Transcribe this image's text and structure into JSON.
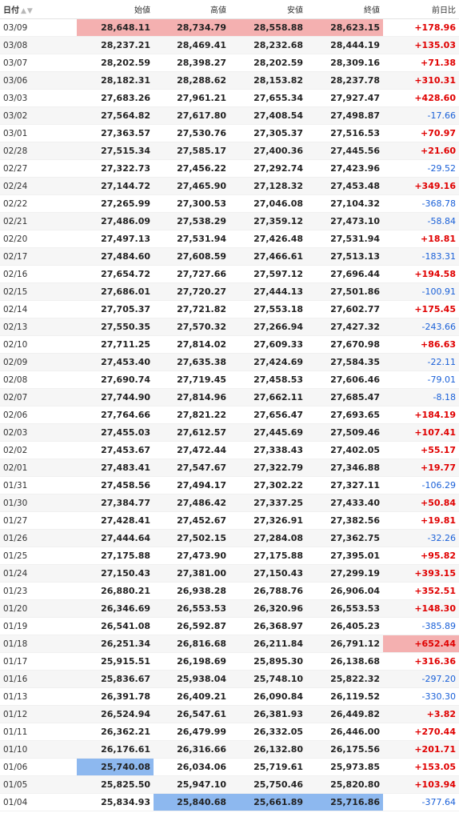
{
  "header": {
    "date": "日付",
    "open": "始値",
    "high": "高値",
    "low": "安値",
    "close": "終値",
    "change": "前日比",
    "sort_icon": "sort-up-down-icon"
  },
  "colors": {
    "high_highlight": "#f4b0b0",
    "low_highlight": "#8db8ef",
    "positive": "#e00000",
    "negative": "#1a60d8"
  },
  "rows": [
    {
      "date": "03/09",
      "open": "28,648.11",
      "high": "28,734.79",
      "low": "28,558.88",
      "close": "28,623.15",
      "change": "+178.96",
      "hi": [
        "open",
        "high",
        "low",
        "close"
      ],
      "lo": []
    },
    {
      "date": "03/08",
      "open": "28,237.21",
      "high": "28,469.41",
      "low": "28,232.68",
      "close": "28,444.19",
      "change": "+135.03",
      "hi": [],
      "lo": []
    },
    {
      "date": "03/07",
      "open": "28,202.59",
      "high": "28,398.27",
      "low": "28,202.59",
      "close": "28,309.16",
      "change": "+71.38",
      "hi": [],
      "lo": []
    },
    {
      "date": "03/06",
      "open": "28,182.31",
      "high": "28,288.62",
      "low": "28,153.82",
      "close": "28,237.78",
      "change": "+310.31",
      "hi": [],
      "lo": []
    },
    {
      "date": "03/03",
      "open": "27,683.26",
      "high": "27,961.21",
      "low": "27,655.34",
      "close": "27,927.47",
      "change": "+428.60",
      "hi": [],
      "lo": []
    },
    {
      "date": "03/02",
      "open": "27,564.82",
      "high": "27,617.80",
      "low": "27,408.54",
      "close": "27,498.87",
      "change": "-17.66",
      "hi": [],
      "lo": []
    },
    {
      "date": "03/01",
      "open": "27,363.57",
      "high": "27,530.76",
      "low": "27,305.37",
      "close": "27,516.53",
      "change": "+70.97",
      "hi": [],
      "lo": []
    },
    {
      "date": "02/28",
      "open": "27,515.34",
      "high": "27,585.17",
      "low": "27,400.36",
      "close": "27,445.56",
      "change": "+21.60",
      "hi": [],
      "lo": []
    },
    {
      "date": "02/27",
      "open": "27,322.73",
      "high": "27,456.22",
      "low": "27,292.74",
      "close": "27,423.96",
      "change": "-29.52",
      "hi": [],
      "lo": []
    },
    {
      "date": "02/24",
      "open": "27,144.72",
      "high": "27,465.90",
      "low": "27,128.32",
      "close": "27,453.48",
      "change": "+349.16",
      "hi": [],
      "lo": []
    },
    {
      "date": "02/22",
      "open": "27,265.99",
      "high": "27,300.53",
      "low": "27,046.08",
      "close": "27,104.32",
      "change": "-368.78",
      "hi": [],
      "lo": []
    },
    {
      "date": "02/21",
      "open": "27,486.09",
      "high": "27,538.29",
      "low": "27,359.12",
      "close": "27,473.10",
      "change": "-58.84",
      "hi": [],
      "lo": []
    },
    {
      "date": "02/20",
      "open": "27,497.13",
      "high": "27,531.94",
      "low": "27,426.48",
      "close": "27,531.94",
      "change": "+18.81",
      "hi": [],
      "lo": []
    },
    {
      "date": "02/17",
      "open": "27,484.60",
      "high": "27,608.59",
      "low": "27,466.61",
      "close": "27,513.13",
      "change": "-183.31",
      "hi": [],
      "lo": []
    },
    {
      "date": "02/16",
      "open": "27,654.72",
      "high": "27,727.66",
      "low": "27,597.12",
      "close": "27,696.44",
      "change": "+194.58",
      "hi": [],
      "lo": []
    },
    {
      "date": "02/15",
      "open": "27,686.01",
      "high": "27,720.27",
      "low": "27,444.13",
      "close": "27,501.86",
      "change": "-100.91",
      "hi": [],
      "lo": []
    },
    {
      "date": "02/14",
      "open": "27,705.37",
      "high": "27,721.82",
      "low": "27,553.18",
      "close": "27,602.77",
      "change": "+175.45",
      "hi": [],
      "lo": []
    },
    {
      "date": "02/13",
      "open": "27,550.35",
      "high": "27,570.32",
      "low": "27,266.94",
      "close": "27,427.32",
      "change": "-243.66",
      "hi": [],
      "lo": []
    },
    {
      "date": "02/10",
      "open": "27,711.25",
      "high": "27,814.02",
      "low": "27,609.33",
      "close": "27,670.98",
      "change": "+86.63",
      "hi": [],
      "lo": []
    },
    {
      "date": "02/09",
      "open": "27,453.40",
      "high": "27,635.38",
      "low": "27,424.69",
      "close": "27,584.35",
      "change": "-22.11",
      "hi": [],
      "lo": []
    },
    {
      "date": "02/08",
      "open": "27,690.74",
      "high": "27,719.45",
      "low": "27,458.53",
      "close": "27,606.46",
      "change": "-79.01",
      "hi": [],
      "lo": []
    },
    {
      "date": "02/07",
      "open": "27,744.90",
      "high": "27,814.96",
      "low": "27,662.11",
      "close": "27,685.47",
      "change": "-8.18",
      "hi": [],
      "lo": []
    },
    {
      "date": "02/06",
      "open": "27,764.66",
      "high": "27,821.22",
      "low": "27,656.47",
      "close": "27,693.65",
      "change": "+184.19",
      "hi": [],
      "lo": []
    },
    {
      "date": "02/03",
      "open": "27,455.03",
      "high": "27,612.57",
      "low": "27,445.69",
      "close": "27,509.46",
      "change": "+107.41",
      "hi": [],
      "lo": []
    },
    {
      "date": "02/02",
      "open": "27,453.67",
      "high": "27,472.44",
      "low": "27,338.43",
      "close": "27,402.05",
      "change": "+55.17",
      "hi": [],
      "lo": []
    },
    {
      "date": "02/01",
      "open": "27,483.41",
      "high": "27,547.67",
      "low": "27,322.79",
      "close": "27,346.88",
      "change": "+19.77",
      "hi": [],
      "lo": []
    },
    {
      "date": "01/31",
      "open": "27,458.56",
      "high": "27,494.17",
      "low": "27,302.22",
      "close": "27,327.11",
      "change": "-106.29",
      "hi": [],
      "lo": []
    },
    {
      "date": "01/30",
      "open": "27,384.77",
      "high": "27,486.42",
      "low": "27,337.25",
      "close": "27,433.40",
      "change": "+50.84",
      "hi": [],
      "lo": []
    },
    {
      "date": "01/27",
      "open": "27,428.41",
      "high": "27,452.67",
      "low": "27,326.91",
      "close": "27,382.56",
      "change": "+19.81",
      "hi": [],
      "lo": []
    },
    {
      "date": "01/26",
      "open": "27,444.64",
      "high": "27,502.15",
      "low": "27,284.08",
      "close": "27,362.75",
      "change": "-32.26",
      "hi": [],
      "lo": []
    },
    {
      "date": "01/25",
      "open": "27,175.88",
      "high": "27,473.90",
      "low": "27,175.88",
      "close": "27,395.01",
      "change": "+95.82",
      "hi": [],
      "lo": []
    },
    {
      "date": "01/24",
      "open": "27,150.43",
      "high": "27,381.00",
      "low": "27,150.43",
      "close": "27,299.19",
      "change": "+393.15",
      "hi": [],
      "lo": []
    },
    {
      "date": "01/23",
      "open": "26,880.21",
      "high": "26,938.28",
      "low": "26,788.76",
      "close": "26,906.04",
      "change": "+352.51",
      "hi": [],
      "lo": []
    },
    {
      "date": "01/20",
      "open": "26,346.69",
      "high": "26,553.53",
      "low": "26,320.96",
      "close": "26,553.53",
      "change": "+148.30",
      "hi": [],
      "lo": []
    },
    {
      "date": "01/19",
      "open": "26,541.08",
      "high": "26,592.87",
      "low": "26,368.97",
      "close": "26,405.23",
      "change": "-385.89",
      "hi": [],
      "lo": []
    },
    {
      "date": "01/18",
      "open": "26,251.34",
      "high": "26,816.68",
      "low": "26,211.84",
      "close": "26,791.12",
      "change": "+652.44",
      "hi": [
        "change"
      ],
      "lo": []
    },
    {
      "date": "01/17",
      "open": "25,915.51",
      "high": "26,198.69",
      "low": "25,895.30",
      "close": "26,138.68",
      "change": "+316.36",
      "hi": [],
      "lo": []
    },
    {
      "date": "01/16",
      "open": "25,836.67",
      "high": "25,938.04",
      "low": "25,748.10",
      "close": "25,822.32",
      "change": "-297.20",
      "hi": [],
      "lo": []
    },
    {
      "date": "01/13",
      "open": "26,391.78",
      "high": "26,409.21",
      "low": "26,090.84",
      "close": "26,119.52",
      "change": "-330.30",
      "hi": [],
      "lo": []
    },
    {
      "date": "01/12",
      "open": "26,524.94",
      "high": "26,547.61",
      "low": "26,381.93",
      "close": "26,449.82",
      "change": "+3.82",
      "hi": [],
      "lo": []
    },
    {
      "date": "01/11",
      "open": "26,362.21",
      "high": "26,479.99",
      "low": "26,332.05",
      "close": "26,446.00",
      "change": "+270.44",
      "hi": [],
      "lo": []
    },
    {
      "date": "01/10",
      "open": "26,176.61",
      "high": "26,316.66",
      "low": "26,132.80",
      "close": "26,175.56",
      "change": "+201.71",
      "hi": [],
      "lo": []
    },
    {
      "date": "01/06",
      "open": "25,740.08",
      "high": "26,034.06",
      "low": "25,719.61",
      "close": "25,973.85",
      "change": "+153.05",
      "hi": [],
      "lo": [
        "open"
      ]
    },
    {
      "date": "01/05",
      "open": "25,825.50",
      "high": "25,947.10",
      "low": "25,750.46",
      "close": "25,820.80",
      "change": "+103.94",
      "hi": [],
      "lo": []
    },
    {
      "date": "01/04",
      "open": "25,834.93",
      "high": "25,840.68",
      "low": "25,661.89",
      "close": "25,716.86",
      "change": "-377.64",
      "hi": [],
      "lo": [
        "high",
        "low",
        "close"
      ]
    }
  ]
}
